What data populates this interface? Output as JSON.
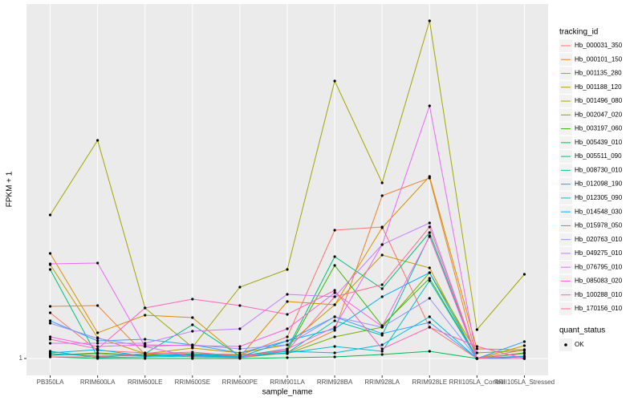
{
  "chart_data": {
    "type": "line",
    "x_label": "sample_name",
    "y_label": "FPKM + 1",
    "categories": [
      "PB350LA",
      "RRIM600LA",
      "RRIM600LE",
      "RRIM600SE",
      "RRIM600PE",
      "RRIM901LA",
      "RRIM928BA",
      "RRIM928LA",
      "RRIM928LE",
      "RRII105LA_Control",
      "RRII105LA_Stressed"
    ],
    "ylim": [
      -1.1,
      45.2
    ],
    "yticks": [
      1
    ],
    "grid": true,
    "legend_title": "tracking_id",
    "point_legend": {
      "title": "quant_status",
      "label": "OK",
      "color": "#000000"
    },
    "series": [
      {
        "name": "Hb_000031_350",
        "color": "#F8766D",
        "values": [
          6.7,
          2.0,
          1.7,
          1.6,
          1.4,
          3.7,
          17.0,
          17.4,
          4.9,
          1.0,
          2.1
        ]
      },
      {
        "name": "Hb_000101_150",
        "color": "#EA8331",
        "values": [
          7.5,
          7.6,
          1.5,
          1.2,
          1.1,
          1.7,
          4.5,
          21.3,
          23.5,
          1.0,
          1.7
        ]
      },
      {
        "name": "Hb_001135_280",
        "color": "#D89000",
        "values": [
          14.1,
          4.2,
          6.4,
          6.1,
          1.2,
          8.1,
          7.7,
          17.3,
          23.7,
          2.2,
          2.1
        ]
      },
      {
        "name": "Hb_001188_120",
        "color": "#C09B00",
        "values": [
          12.7,
          3.6,
          1.6,
          2.3,
          1.7,
          2.7,
          7.7,
          13.9,
          12.3,
          1.0,
          2.6
        ]
      },
      {
        "name": "Hb_001496_080",
        "color": "#A3A500",
        "values": [
          18.9,
          28.2,
          7.3,
          2.4,
          9.9,
          12.1,
          35.6,
          22.9,
          43.1,
          4.6,
          11.5
        ]
      },
      {
        "name": "Hb_002047_020",
        "color": "#7CAE00",
        "values": [
          1.4,
          1.7,
          1.4,
          1.6,
          1.5,
          1.6,
          3.7,
          4.9,
          11.7,
          1.7,
          2.0
        ]
      },
      {
        "name": "Hb_003197_060",
        "color": "#39B600",
        "values": [
          1.6,
          1.3,
          1.4,
          1.4,
          1.3,
          2.0,
          12.6,
          5.1,
          11.0,
          1.0,
          1.7
        ]
      },
      {
        "name": "Hb_005439_010",
        "color": "#00BB4E",
        "values": [
          1.2,
          1.0,
          1.0,
          1.0,
          1.0,
          1.1,
          1.2,
          1.5,
          1.9,
          1.0,
          1.0
        ]
      },
      {
        "name": "Hb_005511_090",
        "color": "#00BF7D",
        "values": [
          12.1,
          1.2,
          1.6,
          5.2,
          1.3,
          2.2,
          13.7,
          9.7,
          16.7,
          1.0,
          1.2
        ]
      },
      {
        "name": "Hb_008730_010",
        "color": "#00C1A3",
        "values": [
          1.9,
          1.1,
          1.6,
          1.3,
          1.2,
          1.7,
          5.7,
          3.9,
          16.3,
          1.0,
          1.0
        ]
      },
      {
        "name": "Hb_012098_190",
        "color": "#00BFC4",
        "values": [
          1.4,
          1.6,
          1.3,
          1.6,
          1.3,
          1.7,
          2.5,
          1.9,
          10.7,
          1.0,
          1.2
        ]
      },
      {
        "name": "Hb_012305_090",
        "color": "#00BAE0",
        "values": [
          1.9,
          1.1,
          1.2,
          1.3,
          1.2,
          1.9,
          1.7,
          2.7,
          6.2,
          1.0,
          1.0
        ]
      },
      {
        "name": "Hb_014548_030",
        "color": "#00B0F6",
        "values": [
          1.7,
          2.1,
          1.3,
          1.5,
          1.2,
          3.2,
          4.7,
          8.7,
          11.7,
          1.0,
          1.3
        ]
      },
      {
        "name": "Hb_015978_050",
        "color": "#35A2FF",
        "values": [
          5.7,
          3.2,
          3.4,
          2.7,
          1.7,
          3.2,
          6.2,
          4.1,
          5.5,
          1.0,
          3.1
        ]
      },
      {
        "name": "Hb_020763_010",
        "color": "#9590FF",
        "values": [
          5.4,
          3.5,
          2.5,
          2.7,
          2.2,
          2.7,
          6.2,
          4.9,
          8.5,
          1.0,
          1.0
        ]
      },
      {
        "name": "Hb_049275_010",
        "color": "#C77CFF",
        "values": [
          2.9,
          2.9,
          2.9,
          4.4,
          4.7,
          9.0,
          8.7,
          15.2,
          17.9,
          1.0,
          1.0
        ]
      },
      {
        "name": "Hb_076795_010",
        "color": "#E76BF3",
        "values": [
          12.8,
          12.9,
          2.5,
          1.2,
          1.1,
          2.2,
          4.9,
          15.2,
          32.5,
          1.0,
          1.0
        ]
      },
      {
        "name": "Hb_085083_020",
        "color": "#FA62DB",
        "values": [
          3.7,
          2.5,
          2.7,
          2.6,
          2.5,
          4.7,
          9.2,
          5.0,
          16.2,
          1.0,
          1.0
        ]
      },
      {
        "name": "Hb_100288_010",
        "color": "#FF62BC",
        "values": [
          3.4,
          2.2,
          7.3,
          8.4,
          7.6,
          6.5,
          9.5,
          2.2,
          4.9,
          2.5,
          1.0
        ]
      },
      {
        "name": "Hb_170156_010",
        "color": "#FF6C91",
        "values": [
          1.2,
          1.2,
          1.6,
          1.8,
          1.3,
          2.0,
          8.7,
          10.2,
          17.4,
          1.0,
          1.6
        ]
      }
    ]
  }
}
